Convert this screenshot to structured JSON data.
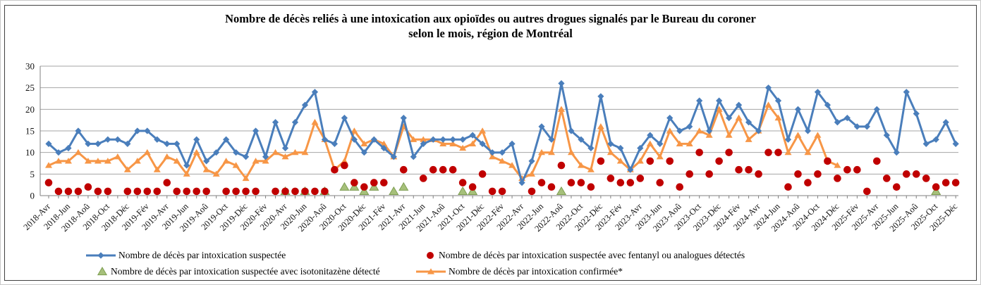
{
  "title": {
    "line1": "Nombre de décès reliés à une intoxication aux opioïdes  ou autres drogues signalés par le Bureau du coroner",
    "line2": "selon le mois, région de Montréal"
  },
  "colors": {
    "suspectee_blue": "#4A7EBB",
    "fentanyl_red": "#C00000",
    "isotonitazene_green_fill": "#A6C07A",
    "isotonitazene_green_stroke": "#7E9E52",
    "confirmee_orange": "#F79646",
    "gridline_gray": "#A6A6A6",
    "axis_gray": "#808080"
  },
  "chart_data": {
    "type": "line",
    "title": "Nombre de décès reliés à une intoxication aux opioïdes ou autres drogues signalés par le Bureau du coroner selon le mois, région de Montréal",
    "ylim": [
      0,
      30
    ],
    "yticks": [
      0,
      5,
      10,
      15,
      20,
      25,
      30
    ],
    "grid": "horizontal",
    "legend_position": "bottom",
    "x_label_every": 2,
    "categories": [
      "2018-Avr",
      "2018-Mai",
      "2018-Jun",
      "2018-Juil",
      "2018-Aoû",
      "2018-Sep",
      "2018-Oct",
      "2018-Nov",
      "2018-Déc",
      "2019-Jan",
      "2019-Fév",
      "2019-Mar",
      "2019-Avr",
      "2019-Mai",
      "2019-Jun",
      "2019-Juil",
      "2019-Aoû",
      "2019-Sep",
      "2019-Oct",
      "2019-Nov",
      "2019-Déc",
      "2020-Jan",
      "2020-Fév",
      "2020-Mar",
      "2020-Avr",
      "2020-Mai",
      "2020-Jun",
      "2020-Juil",
      "2020-Aoû",
      "2020-Sep",
      "2020-Oct",
      "2020-Nov",
      "2020-Déc",
      "2021-Jan",
      "2021-Fév",
      "2021-Mar",
      "2021-Avr",
      "2021-Mai",
      "2021-Jun",
      "2021-Juil",
      "2021-Aoû",
      "2021-Sep",
      "2021-Oct",
      "2021-Nov",
      "2021-Déc",
      "2022-Jan",
      "2022-Fév",
      "2022-Mar",
      "2022-Avr",
      "2022-Mai",
      "2022-Jun",
      "2022-Juil",
      "2022-Aoû",
      "2022-Sep",
      "2022-Oct",
      "2022-Nov",
      "2022-Déc",
      "2023-Jan",
      "2023-Fév",
      "2023-Mar",
      "2023-Avr",
      "2023-Mai",
      "2023-Jun",
      "2023-Juil",
      "2023-Aoû",
      "2023-Sep",
      "2023-Oct",
      "2023-Nov",
      "2023-Déc",
      "2024-Jan",
      "2024-Fév",
      "2024-Mar",
      "2024-Avr",
      "2024-Mai",
      "2024-Jun",
      "2024-Juil",
      "2024-Aoû",
      "2024-Sep",
      "2024-Oct",
      "2024-Nov",
      "2024-Déc",
      "2025-Jan",
      "2025-Fév",
      "2025-Mar",
      "2025-Avr",
      "2025-Mai",
      "2025-Jun",
      "2025-Juil",
      "2025-Aoû",
      "2025-Sep",
      "2025-Oct",
      "2025-Nov",
      "2025-Déc"
    ],
    "series": [
      {
        "name": "Nombre de décès par intoxication suspectée",
        "marker": "diamond-line",
        "color": "#4A7EBB",
        "values": [
          12,
          10,
          11,
          15,
          12,
          12,
          13,
          13,
          12,
          15,
          15,
          13,
          12,
          12,
          7,
          13,
          8,
          10,
          13,
          10,
          9,
          15,
          9,
          17,
          11,
          17,
          21,
          24,
          13,
          12,
          18,
          13,
          10,
          13,
          11,
          9,
          18,
          9,
          12,
          13,
          13,
          13,
          13,
          14,
          12,
          10,
          10,
          12,
          3,
          8,
          16,
          13,
          26,
          15,
          13,
          11,
          23,
          12,
          11,
          6,
          11,
          14,
          12,
          18,
          15,
          16,
          22,
          15,
          22,
          18,
          21,
          17,
          15,
          25,
          22,
          13,
          20,
          15,
          24,
          21,
          17,
          18,
          16,
          16,
          20,
          14,
          10,
          24,
          19,
          12,
          13,
          17,
          12
        ]
      },
      {
        "name": "Nombre de décès par intoxication suspectée avec fentanyl ou analogues détectés",
        "marker": "circle",
        "color": "#C00000",
        "values": [
          3,
          1,
          1,
          1,
          2,
          1,
          1,
          null,
          1,
          1,
          1,
          1,
          3,
          1,
          1,
          1,
          1,
          null,
          1,
          1,
          1,
          1,
          null,
          1,
          1,
          1,
          1,
          1,
          1,
          6,
          7,
          3,
          2,
          3,
          3,
          null,
          6,
          null,
          4,
          6,
          6,
          6,
          3,
          2,
          5,
          1,
          1,
          null,
          null,
          1,
          3,
          2,
          7,
          3,
          3,
          2,
          8,
          4,
          3,
          3,
          4,
          8,
          3,
          8,
          2,
          5,
          10,
          5,
          8,
          10,
          6,
          6,
          5,
          10,
          10,
          2,
          5,
          3,
          5,
          8,
          4,
          6,
          6,
          1,
          8,
          4,
          2,
          5,
          5,
          4,
          2,
          3,
          3
        ]
      },
      {
        "name": "Nombre de décès par intoxication suspectée avec isotonitazène détecté",
        "marker": "triangle",
        "color": "#A6C07A",
        "stroke": "#7E9E52",
        "values": [
          null,
          null,
          null,
          null,
          null,
          null,
          null,
          null,
          null,
          null,
          null,
          null,
          null,
          null,
          null,
          null,
          null,
          null,
          null,
          null,
          null,
          null,
          null,
          null,
          1,
          null,
          1,
          null,
          1,
          null,
          2,
          2,
          1,
          2,
          null,
          1,
          2,
          null,
          null,
          null,
          null,
          null,
          1,
          1,
          null,
          null,
          null,
          null,
          null,
          null,
          null,
          null,
          1,
          null,
          null,
          null,
          null,
          null,
          null,
          null,
          null,
          null,
          null,
          null,
          null,
          null,
          null,
          null,
          null,
          null,
          null,
          null,
          null,
          null,
          null,
          null,
          null,
          null,
          null,
          null,
          null,
          null,
          null,
          null,
          null,
          null,
          null,
          null,
          null,
          null,
          1,
          null,
          null
        ]
      },
      {
        "name": "Nombre de décès par intoxication confirmée*",
        "marker": "triangle-line",
        "color": "#F79646",
        "values": [
          7,
          8,
          8,
          10,
          8,
          8,
          8,
          9,
          6,
          8,
          10,
          6,
          9,
          8,
          5,
          10,
          6,
          5,
          8,
          7,
          4,
          8,
          8,
          10,
          9,
          10,
          10,
          17,
          13,
          6,
          8,
          15,
          12,
          13,
          12,
          9,
          16,
          13,
          13,
          13,
          12,
          12,
          11,
          12,
          15,
          9,
          8,
          7,
          4,
          5,
          10,
          10,
          20,
          10,
          7,
          6,
          16,
          10,
          8,
          6,
          8,
          12,
          9,
          15,
          12,
          12,
          15,
          14,
          20,
          14,
          18,
          13,
          15,
          21,
          18,
          10,
          14,
          10,
          14,
          8,
          7,
          null,
          null,
          null,
          null,
          null,
          null,
          null,
          null,
          null,
          null,
          null,
          null
        ]
      }
    ]
  },
  "legend": {
    "item1": "Nombre de décès par intoxication suspectée",
    "item2": "Nombre de décès par intoxication suspectée avec fentanyl ou analogues détectés",
    "item3": "Nombre de décès par intoxication suspectée avec isotonitazène détecté",
    "item4": "Nombre de décès par intoxication confirmée*"
  }
}
